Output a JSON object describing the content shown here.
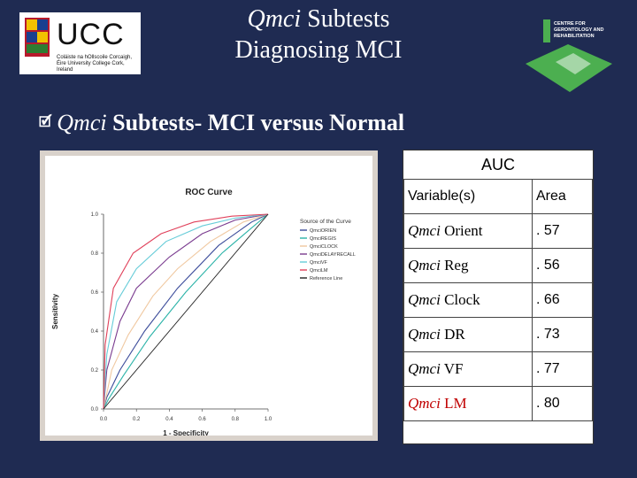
{
  "slide": {
    "title_italic": "Qmci",
    "title_rest": " Subtests",
    "title_line2": "Diagnosing MCI",
    "subheading_italic": "Qmci",
    "subheading_rest": " Subtests- MCI versus Normal"
  },
  "logos": {
    "ucc_wordmark": "UCC",
    "ucc_small_text": "Coláiste na hOllscoile Corcaigh, Éire University College Cork, Ireland",
    "cgr_text": "CENTRE FOR GERONTOLOGY AND REHABILITATION"
  },
  "auc_table": {
    "heading": "AUC",
    "header_variable": "Variable(s)",
    "header_area": "Area",
    "rows": [
      {
        "prefix": "Qmci",
        "name": " Orient",
        "area": ". 57",
        "highlight": false
      },
      {
        "prefix": "Qmci",
        "name": " Reg",
        "area": ". 56",
        "highlight": false
      },
      {
        "prefix": "Qmci",
        "name": " Clock",
        "area": ". 66",
        "highlight": false
      },
      {
        "prefix": "Qmci",
        "name": " DR",
        "area": ". 73",
        "highlight": false
      },
      {
        "prefix": "Qmci",
        "name": " VF",
        "area": ". 77",
        "highlight": false
      },
      {
        "prefix": "Qmci",
        "name": " LM",
        "area": ". 80",
        "highlight": true
      }
    ]
  },
  "chart_data": {
    "type": "line",
    "title": "ROC Curve",
    "xlabel": "1 - Specificity",
    "ylabel": "Sensitivity",
    "xlim": [
      0,
      1
    ],
    "ylim": [
      0,
      1
    ],
    "xticks": [
      "0.0",
      "0.2",
      "0.4",
      "0.6",
      "0.8",
      "1.0"
    ],
    "yticks": [
      "0.0",
      "0.2",
      "0.4",
      "0.6",
      "0.8",
      "1.0"
    ],
    "legend_title": "Source of the Curve",
    "legend_position": "right",
    "series": [
      {
        "name": "QmciORIEN",
        "color": "#3b4b9a",
        "x": [
          0,
          0.02,
          0.1,
          0.25,
          0.45,
          0.7,
          0.9,
          1
        ],
        "y": [
          0,
          0.06,
          0.2,
          0.4,
          0.62,
          0.84,
          0.96,
          1
        ]
      },
      {
        "name": "QmciREGIS",
        "color": "#2bb3a8",
        "x": [
          0,
          0.03,
          0.12,
          0.28,
          0.5,
          0.72,
          0.9,
          1
        ],
        "y": [
          0,
          0.05,
          0.17,
          0.37,
          0.6,
          0.8,
          0.93,
          1
        ]
      },
      {
        "name": "QmciCLOCK",
        "color": "#f0c8a0",
        "x": [
          0,
          0.05,
          0.15,
          0.3,
          0.45,
          0.65,
          0.85,
          1
        ],
        "y": [
          0,
          0.2,
          0.38,
          0.58,
          0.72,
          0.86,
          0.96,
          1
        ]
      },
      {
        "name": "QmciDELAYRECALL",
        "color": "#7a3b8f",
        "x": [
          0,
          0.02,
          0.1,
          0.2,
          0.4,
          0.6,
          0.8,
          1
        ],
        "y": [
          0,
          0.2,
          0.45,
          0.62,
          0.78,
          0.9,
          0.97,
          1
        ]
      },
      {
        "name": "QmciVF",
        "color": "#66ccd8",
        "x": [
          0,
          0.02,
          0.08,
          0.2,
          0.38,
          0.6,
          0.8,
          1
        ],
        "y": [
          0,
          0.28,
          0.55,
          0.72,
          0.86,
          0.94,
          0.98,
          1
        ]
      },
      {
        "name": "QmciLM",
        "color": "#e0405a",
        "x": [
          0,
          0.01,
          0.06,
          0.18,
          0.35,
          0.55,
          0.78,
          1
        ],
        "y": [
          0,
          0.33,
          0.62,
          0.8,
          0.9,
          0.96,
          0.99,
          1
        ]
      },
      {
        "name": "Reference Line",
        "color": "#222222",
        "x": [
          0,
          1
        ],
        "y": [
          0,
          1
        ]
      }
    ]
  }
}
